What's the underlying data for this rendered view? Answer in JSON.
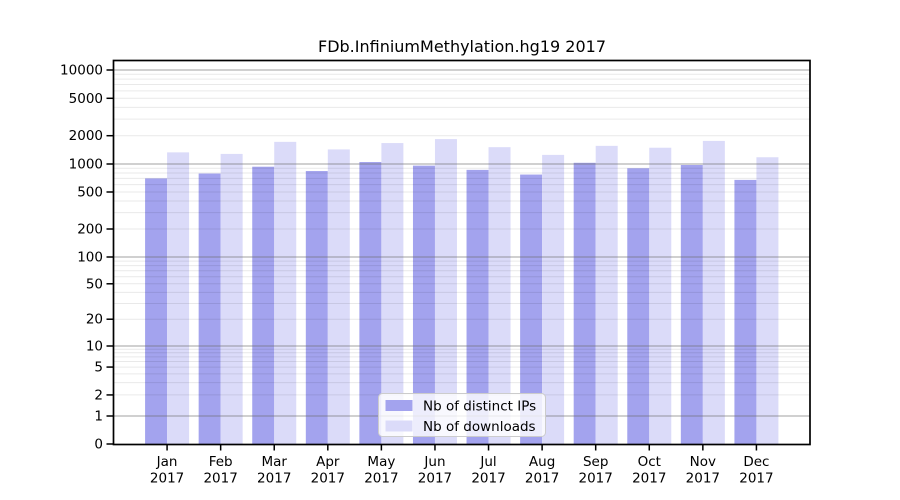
{
  "window": {
    "background": "#ffffff"
  },
  "chart_data": {
    "type": "bar",
    "title": "FDb.InfiniumMethylation.hg19 2017",
    "categories": [
      "Jan",
      "Feb",
      "Mar",
      "Apr",
      "May",
      "Jun",
      "Jul",
      "Aug",
      "Sep",
      "Oct",
      "Nov",
      "Dec"
    ],
    "category_year_label": "2017",
    "series": [
      {
        "name": "Nb of distinct IPs",
        "color": "#a3a3ee",
        "values": [
          700,
          790,
          935,
          840,
          1050,
          960,
          865,
          770,
          1030,
          900,
          975,
          675
        ]
      },
      {
        "name": "Nb of downloads",
        "color": "#dbdbf9",
        "values": [
          1330,
          1280,
          1720,
          1430,
          1670,
          1840,
          1510,
          1250,
          1560,
          1490,
          1760,
          1180
        ]
      }
    ],
    "yscale": "log above 1, linear 0-1 (symlog)",
    "ylim": [
      0,
      10000
    ],
    "ytick_labels": [
      "10000",
      "5000",
      "2000",
      "1000",
      "500",
      "200",
      "100",
      "50",
      "20",
      "10",
      "5",
      "2",
      "1",
      "0"
    ],
    "xlabel": "",
    "ylabel": "",
    "grid": {
      "horizontal_major": true,
      "horizontal_minor": true,
      "vertical": false
    },
    "legend": {
      "location": "lower center",
      "entries": [
        "Nb of distinct IPs",
        "Nb of downloads"
      ]
    },
    "colors": {
      "axis_frame": "#000000",
      "major_grid": "#9b9b9b",
      "minor_grid": "#e2e2e2",
      "text": "#000000",
      "plot_bg": "#ffffff",
      "legend_border": "#cccccc"
    }
  }
}
